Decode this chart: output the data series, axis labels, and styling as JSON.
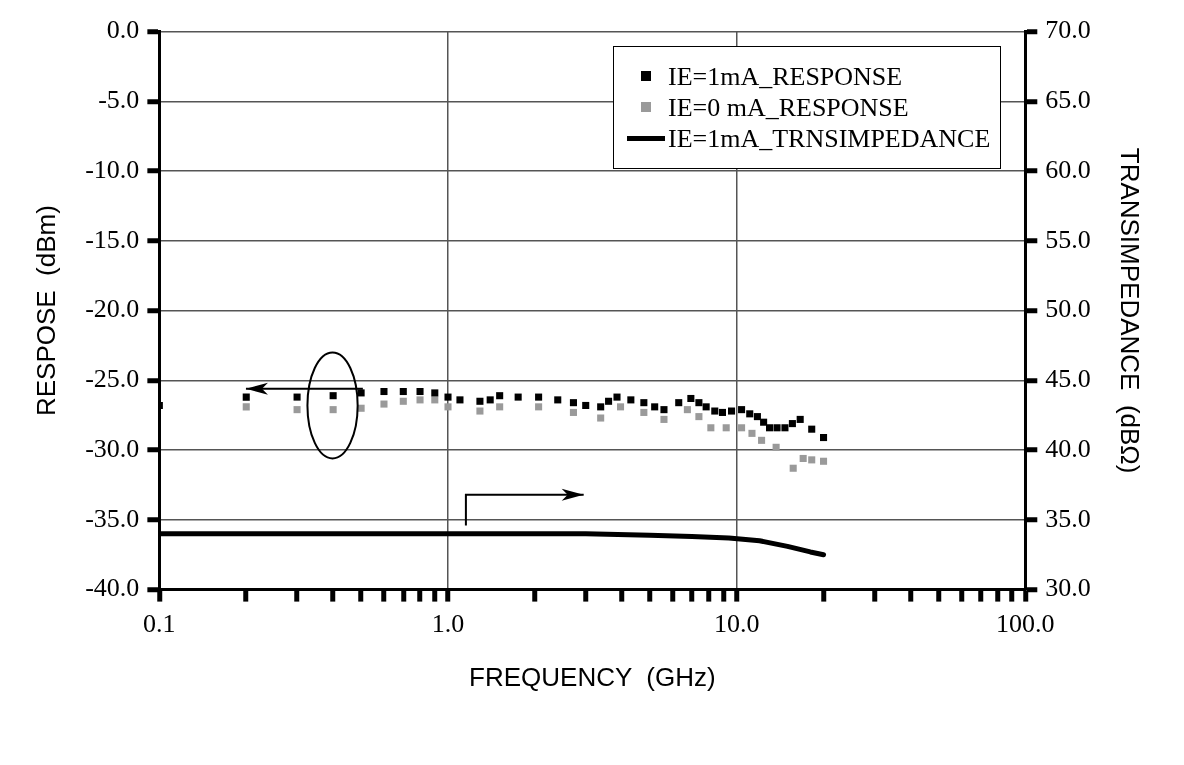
{
  "chart_data": {
    "type": "scatter",
    "xlabel": "FREQUENCY  (GHz)",
    "ylabel": "RESPOSE  (dBm)",
    "y2label": "TRANSIMPEDANCE  (dBΩ)",
    "log": "x",
    "grid": true,
    "legend": "top right",
    "xlim": [
      0.1,
      100
    ],
    "xticks": [
      {
        "value": 0.1,
        "label": "0.1"
      },
      {
        "value": 0.2,
        "label": null
      },
      {
        "value": 0.3,
        "label": null
      },
      {
        "value": 0.4,
        "label": null
      },
      {
        "value": 0.5,
        "label": null
      },
      {
        "value": 0.6,
        "label": null
      },
      {
        "value": 0.7,
        "label": null
      },
      {
        "value": 0.8,
        "label": null
      },
      {
        "value": 0.9,
        "label": null
      },
      {
        "value": 1,
        "label": "1.0"
      },
      {
        "value": 2,
        "label": null
      },
      {
        "value": 3,
        "label": null
      },
      {
        "value": 4,
        "label": null
      },
      {
        "value": 5,
        "label": null
      },
      {
        "value": 6,
        "label": null
      },
      {
        "value": 7,
        "label": null
      },
      {
        "value": 8,
        "label": null
      },
      {
        "value": 9,
        "label": null
      },
      {
        "value": 10,
        "label": "10.0"
      },
      {
        "value": 20,
        "label": null
      },
      {
        "value": 30,
        "label": null
      },
      {
        "value": 40,
        "label": null
      },
      {
        "value": 50,
        "label": null
      },
      {
        "value": 60,
        "label": null
      },
      {
        "value": 70,
        "label": null
      },
      {
        "value": 80,
        "label": null
      },
      {
        "value": 90,
        "label": null
      },
      {
        "value": 100,
        "label": "100.0"
      }
    ],
    "ylim": [
      -40,
      0
    ],
    "yticks": [
      {
        "value": -40,
        "label": "-40.0"
      },
      {
        "value": -35,
        "label": "-35.0"
      },
      {
        "value": -30,
        "label": "-30.0"
      },
      {
        "value": -25,
        "label": "-25.0"
      },
      {
        "value": -20,
        "label": "-20.0"
      },
      {
        "value": -15,
        "label": "-15.0"
      },
      {
        "value": -10,
        "label": "-10.0"
      },
      {
        "value": -5,
        "label": "-5.0"
      },
      {
        "value": 0,
        "label": "0.0"
      }
    ],
    "y2lim": [
      30,
      70
    ],
    "y2ticks": [
      {
        "value": 30,
        "label": "30.0"
      },
      {
        "value": 35,
        "label": "35.0"
      },
      {
        "value": 40,
        "label": "40.0"
      },
      {
        "value": 45,
        "label": "45.0"
      },
      {
        "value": 50,
        "label": "50.0"
      },
      {
        "value": 55,
        "label": "55.0"
      },
      {
        "value": 60,
        "label": "60.0"
      },
      {
        "value": 65,
        "label": "65.0"
      },
      {
        "value": 70,
        "label": "70.0"
      }
    ],
    "series": [
      {
        "name": "IE=1mA_RESPONSE",
        "marker": "square",
        "color": "#000000",
        "x": [
          0.1,
          0.2,
          0.3,
          0.4,
          0.5,
          0.6,
          0.7,
          0.8,
          0.9,
          1.0,
          1.1,
          1.29,
          1.4,
          1.51,
          1.75,
          2.06,
          2.4,
          2.72,
          3.0,
          3.38,
          3.6,
          3.85,
          4.3,
          4.77,
          5.2,
          5.6,
          6.3,
          6.94,
          7.4,
          7.84,
          8.4,
          8.93,
          9.6,
          10.4,
          11.1,
          11.8,
          12.4,
          13.0,
          13.8,
          14.7,
          15.6,
          16.6,
          18.2,
          20
        ],
        "values": [
          -26.8,
          -26.2,
          -26.2,
          -26.1,
          -25.9,
          -25.8,
          -25.8,
          -25.8,
          -25.9,
          -26.2,
          -26.4,
          -26.5,
          -26.4,
          -26.1,
          -26.2,
          -26.2,
          -26.4,
          -26.6,
          -26.8,
          -26.9,
          -26.5,
          -26.2,
          -26.4,
          -26.6,
          -26.9,
          -27.1,
          -26.6,
          -26.3,
          -26.6,
          -26.9,
          -27.2,
          -27.3,
          -27.2,
          -27.1,
          -27.4,
          -27.6,
          -28.0,
          -28.4,
          -28.4,
          -28.4,
          -28.1,
          -27.8,
          -28.5,
          -29.1
        ]
      },
      {
        "name": "IE=0 mA_RESPONSE",
        "marker": "square",
        "color": "#9a9a9a",
        "x": [
          0.2,
          0.3,
          0.4,
          0.5,
          0.6,
          0.7,
          0.8,
          0.9,
          1.0,
          1.29,
          1.51,
          2.06,
          2.72,
          3.38,
          3.96,
          4.77,
          5.6,
          6.75,
          7.4,
          8.14,
          9.2,
          10.4,
          11.3,
          12.2,
          13.7,
          15.7,
          17.0,
          18.2,
          20
        ],
        "values": [
          -26.9,
          -27.1,
          -27.1,
          -27.0,
          -26.7,
          -26.5,
          -26.4,
          -26.4,
          -26.9,
          -27.2,
          -26.9,
          -26.9,
          -27.3,
          -27.7,
          -26.9,
          -27.3,
          -27.8,
          -27.1,
          -27.6,
          -28.4,
          -28.4,
          -28.4,
          -28.8,
          -29.3,
          -29.8,
          -31.3,
          -30.6,
          -30.7,
          -30.8
        ]
      },
      {
        "name": "IE=1mA_TRNSIMPEDANCE",
        "type": "line",
        "axis": "y2",
        "marker": "none",
        "color": "#000000",
        "x": [
          0.1,
          0.3,
          1,
          2,
          3,
          5,
          7,
          9.4,
          12,
          15,
          18,
          20
        ],
        "values": [
          34.0,
          34.0,
          34.0,
          34.0,
          34.0,
          33.9,
          33.8,
          33.7,
          33.5,
          33.1,
          32.7,
          32.5
        ]
      }
    ]
  }
}
